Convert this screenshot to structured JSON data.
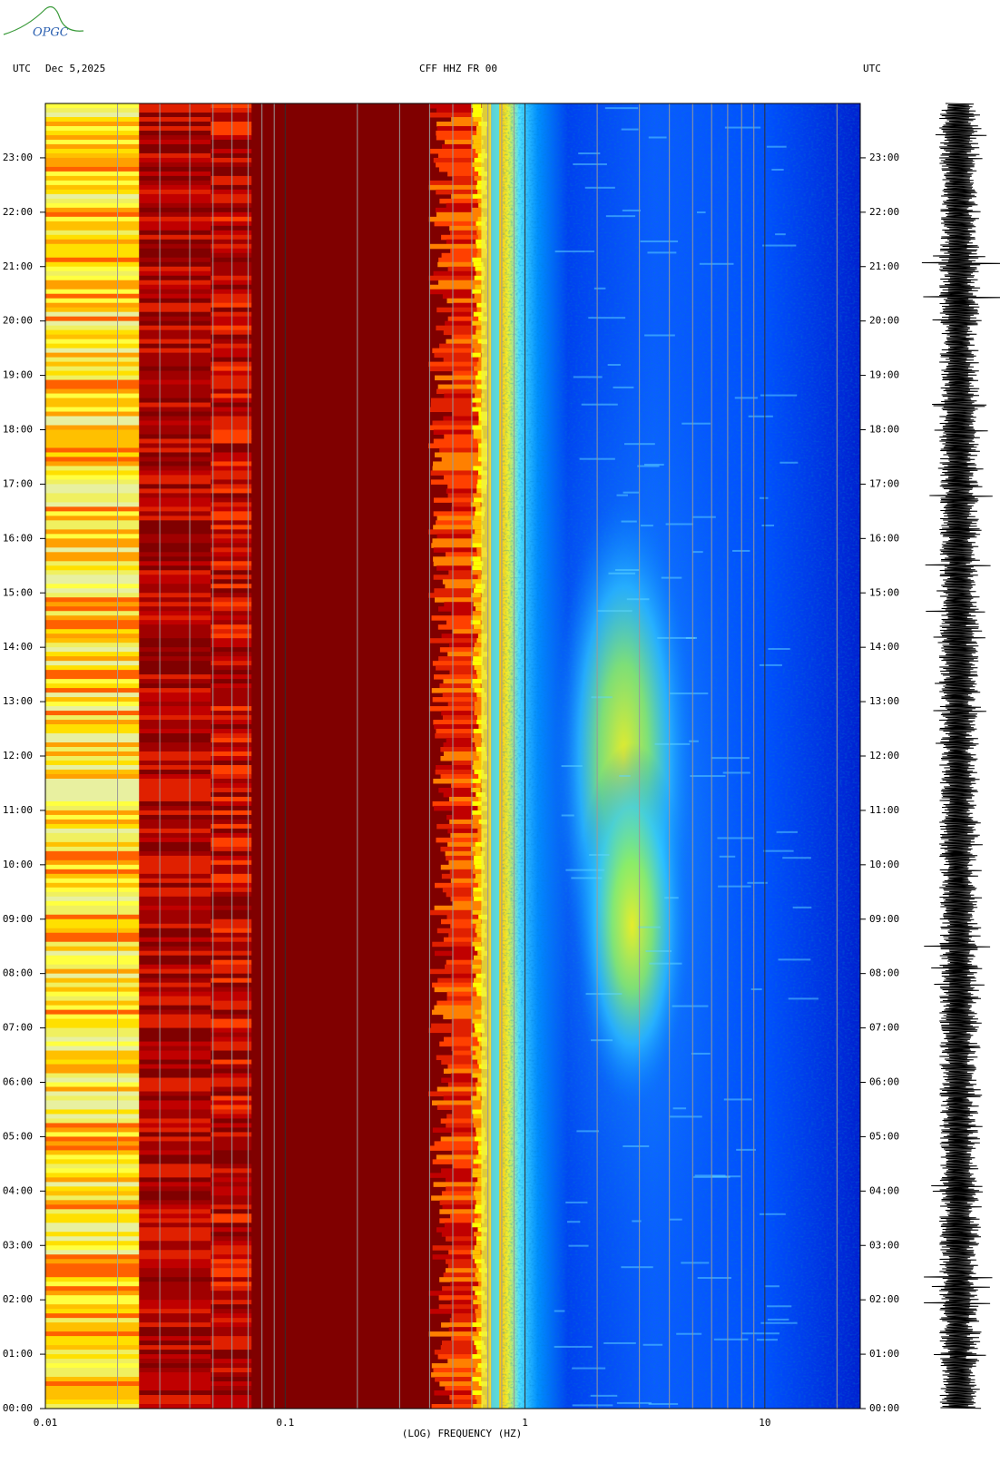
{
  "logo": "OPGC",
  "chart_data": {
    "type": "spectrogram",
    "title": "CFF HHZ FR 00",
    "left_label": "UTC",
    "date": "Dec 5,2025",
    "right_label": "UTC",
    "x_label": "(LOG) FREQUENCY (HZ)",
    "xscale": "log",
    "xlim": [
      0.01,
      25
    ],
    "xticks": [
      0.01,
      0.1,
      1,
      10
    ],
    "xminorticks": [
      0.02,
      0.03,
      0.04,
      0.05,
      0.06,
      0.07,
      0.08,
      0.09,
      0.2,
      0.3,
      0.4,
      0.5,
      0.6,
      0.7,
      0.8,
      0.9,
      2,
      3,
      4,
      5,
      6,
      7,
      8,
      9,
      20
    ],
    "ylim": [
      0,
      24
    ],
    "yticks": [
      {
        "value": 0,
        "label": "00:00"
      },
      {
        "value": 1,
        "label": "01:00"
      },
      {
        "value": 2,
        "label": "02:00"
      },
      {
        "value": 3,
        "label": "03:00"
      },
      {
        "value": 4,
        "label": "04:00"
      },
      {
        "value": 5,
        "label": "05:00"
      },
      {
        "value": 6,
        "label": "06:00"
      },
      {
        "value": 7,
        "label": "07:00"
      },
      {
        "value": 8,
        "label": "08:00"
      },
      {
        "value": 9,
        "label": "09:00"
      },
      {
        "value": 10,
        "label": "10:00"
      },
      {
        "value": 11,
        "label": "11:00"
      },
      {
        "value": 12,
        "label": "12:00"
      },
      {
        "value": 13,
        "label": "13:00"
      },
      {
        "value": 14,
        "label": "14:00"
      },
      {
        "value": 15,
        "label": "15:00"
      },
      {
        "value": 16,
        "label": "16:00"
      },
      {
        "value": 17,
        "label": "17:00"
      },
      {
        "value": 18,
        "label": "18:00"
      },
      {
        "value": 19,
        "label": "19:00"
      },
      {
        "value": 20,
        "label": "20:00"
      },
      {
        "value": 21,
        "label": "21:00"
      },
      {
        "value": 22,
        "label": "22:00"
      },
      {
        "value": 23,
        "label": "23:00"
      }
    ]
  }
}
